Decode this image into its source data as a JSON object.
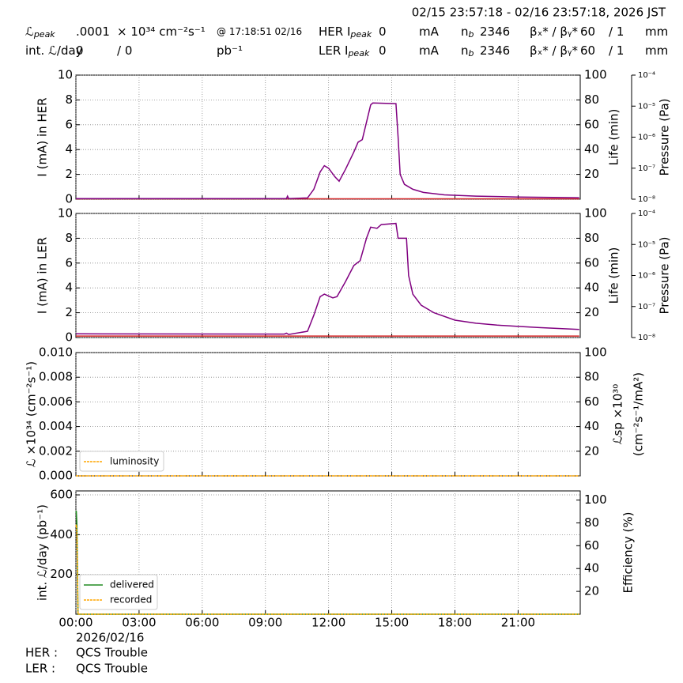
{
  "header": {
    "title": "02/15 23:57:18 - 02/16 23:57:18, 2026 JST",
    "rows": [
      [
        {
          "text": "ℒ",
          "sub": "peak"
        },
        {
          "text": ".0001"
        },
        {
          "text": "× 10³⁴ cm⁻²s⁻¹"
        },
        {
          "text": "@ 17:18:51 02/16"
        },
        {
          "text": "HER I",
          "sub": "peak"
        },
        {
          "text": "0"
        },
        {
          "text": "mA"
        },
        {
          "text": "n",
          "sub": "b"
        },
        {
          "text": "2346"
        },
        {
          "text": "βₓ* / βᵧ*"
        },
        {
          "text": "60"
        },
        {
          "text": "/ 1"
        },
        {
          "text": "mm"
        }
      ],
      [
        {
          "text": "int. ℒ/day"
        },
        {
          "text": "0"
        },
        {
          "text": "/ 0"
        },
        {
          "text": "pb⁻¹"
        },
        {
          "text": "LER I",
          "sub": "peak"
        },
        {
          "text": "0"
        },
        {
          "text": "mA"
        },
        {
          "text": "n",
          "sub": "b"
        },
        {
          "text": "2346"
        },
        {
          "text": "βₓ* / βᵧ*"
        },
        {
          "text": "60"
        },
        {
          "text": "/ 1"
        },
        {
          "text": "mm"
        }
      ]
    ]
  },
  "chart_data": [
    {
      "type": "line",
      "ylabel": "I (mA) in HER",
      "y2label": [
        "Life (min)"
      ],
      "y3label": "Pressure (Pa)",
      "grid": true,
      "xlim": [
        0,
        23.95
      ],
      "ylim": [
        0,
        10
      ],
      "yticks": [
        0,
        2,
        4,
        6,
        8,
        10
      ],
      "y2lim": [
        0,
        100
      ],
      "y2ticks": [
        20,
        40,
        60,
        80,
        100
      ],
      "y3lim": [
        1e-08,
        0.0001
      ],
      "y3log": true,
      "y3ticks": [
        {
          "value": 0.0001,
          "label": "10⁻⁴"
        },
        {
          "value": 1e-05,
          "label": "10⁻⁵"
        },
        {
          "value": 1e-06,
          "label": "10⁻⁶"
        },
        {
          "value": 1e-07,
          "label": "10⁻⁷"
        },
        {
          "value": 1e-08,
          "label": "10⁻⁸"
        }
      ],
      "x": [
        0,
        10,
        10.05,
        10.1,
        11.0,
        11.3,
        11.6,
        11.8,
        12.0,
        12.3,
        12.5,
        12.8,
        13.2,
        13.4,
        13.6,
        13.8,
        14.0,
        14.1,
        15.2,
        15.3,
        15.4,
        15.6,
        16.0,
        16.5,
        17.5,
        19,
        21,
        23.9
      ],
      "series": [
        {
          "color": "#d62728",
          "values": [
            0.03,
            0.03,
            0.03,
            0.03,
            0.03,
            0.03,
            0.03,
            0.03,
            0.03,
            0.03,
            0.03,
            0.03,
            0.03,
            0.03,
            0.03,
            0.03,
            0.03,
            0.03,
            0.03,
            0.03,
            0.03,
            0.03,
            0.03,
            0.03,
            0.03,
            0.03,
            0.03,
            0.03
          ]
        },
        {
          "color": "#800080",
          "values": [
            0.05,
            0.05,
            0.25,
            0.05,
            0.1,
            0.8,
            2.2,
            2.7,
            2.5,
            1.8,
            1.45,
            2.4,
            3.8,
            4.6,
            4.8,
            6.2,
            7.6,
            7.75,
            7.7,
            5.0,
            2.0,
            1.2,
            0.8,
            0.55,
            0.35,
            0.25,
            0.18,
            0.12
          ]
        }
      ]
    },
    {
      "type": "line",
      "ylabel": "I (mA) in LER",
      "y2label": [
        "Life (min)"
      ],
      "y3label": "Pressure (Pa)",
      "grid": true,
      "xlim": [
        0,
        23.95
      ],
      "ylim": [
        0,
        10
      ],
      "yticks": [
        0,
        2,
        4,
        6,
        8,
        10
      ],
      "y2lim": [
        0,
        100
      ],
      "y2ticks": [
        20,
        40,
        60,
        80,
        100
      ],
      "y3lim": [
        1e-08,
        0.0001
      ],
      "y3log": true,
      "y3ticks": [
        {
          "value": 0.0001,
          "label": "10⁻⁴"
        },
        {
          "value": 1e-05,
          "label": "10⁻⁵"
        },
        {
          "value": 1e-06,
          "label": "10⁻⁶"
        },
        {
          "value": 1e-07,
          "label": "10⁻⁷"
        },
        {
          "value": 1e-08,
          "label": "10⁻⁸"
        }
      ],
      "x": [
        0,
        9.9,
        10.0,
        10.1,
        11.0,
        11.3,
        11.6,
        11.8,
        12.2,
        12.4,
        12.8,
        13.2,
        13.5,
        13.8,
        14.0,
        14.3,
        14.5,
        15.2,
        15.3,
        15.7,
        15.8,
        16.0,
        16.4,
        17,
        18,
        19,
        20,
        21,
        22,
        23.9
      ],
      "series": [
        {
          "color": "#800080",
          "values": [
            0.3,
            0.28,
            0.35,
            0.25,
            0.5,
            1.8,
            3.3,
            3.5,
            3.2,
            3.3,
            4.5,
            5.8,
            6.2,
            8.0,
            8.9,
            8.8,
            9.1,
            9.2,
            8.0,
            8.0,
            5.0,
            3.5,
            2.6,
            2.0,
            1.4,
            1.15,
            1.0,
            0.9,
            0.8,
            0.65
          ]
        },
        {
          "color": "#d62728",
          "values": [
            0.12,
            0.12,
            0.12,
            0.12,
            0.12,
            0.12,
            0.12,
            0.12,
            0.12,
            0.12,
            0.12,
            0.12,
            0.12,
            0.12,
            0.12,
            0.12,
            0.12,
            0.12,
            0.12,
            0.12,
            0.12,
            0.12,
            0.12,
            0.12,
            0.12,
            0.12,
            0.12,
            0.12,
            0.12,
            0.12
          ]
        }
      ]
    },
    {
      "type": "line",
      "ylabel": "ℒ ×10³⁴ (cm⁻²s⁻¹)",
      "y2label": [
        "ℒsp ×10³⁰",
        "(cm⁻²s⁻¹/mA²)"
      ],
      "grid": true,
      "legend": "lower left",
      "xlim": [
        0,
        23.95
      ],
      "ylim": [
        0,
        0.01
      ],
      "yticks": [
        {
          "value": 0,
          "label": "0.000"
        },
        {
          "value": 0.002,
          "label": "0.002"
        },
        {
          "value": 0.004,
          "label": "0.004"
        },
        {
          "value": 0.006,
          "label": "0.006"
        },
        {
          "value": 0.008,
          "label": "0.008"
        },
        {
          "value": 0.01,
          "label": "0.010"
        }
      ],
      "y2lim": [
        0,
        100
      ],
      "y2ticks": [
        20,
        40,
        60,
        80,
        100
      ],
      "x": [
        0,
        23.9
      ],
      "series": [
        {
          "name": "luminosity",
          "color": "#ffa500",
          "dashed": true,
          "values": [
            0,
            0
          ]
        }
      ]
    },
    {
      "type": "line",
      "ylabel": "int. ℒ/day (pb⁻¹)",
      "y2label": [
        "Efficiency (%)"
      ],
      "grid": true,
      "legend": "lower left",
      "xlim": [
        0,
        23.95
      ],
      "ylim": [
        0,
        620
      ],
      "yticks": [
        200,
        400,
        600
      ],
      "y2lim": [
        0,
        108
      ],
      "y2ticks": [
        20,
        40,
        60,
        80,
        100
      ],
      "xticks": [
        {
          "value": 0,
          "label": "00:00"
        },
        {
          "value": 3,
          "label": "03:00"
        },
        {
          "value": 6,
          "label": "06:00"
        },
        {
          "value": 9,
          "label": "09:00"
        },
        {
          "value": 12,
          "label": "12:00"
        },
        {
          "value": 15,
          "label": "15:00"
        },
        {
          "value": 18,
          "label": "18:00"
        },
        {
          "value": 21,
          "label": "21:00"
        }
      ],
      "x": [
        0,
        0.02,
        0.05,
        0.1,
        23.9
      ],
      "series": [
        {
          "name": "delivered",
          "color": "#228b22",
          "values": [
            510,
            520,
            450,
            0,
            0
          ]
        },
        {
          "name": "recorded",
          "color": "#ffa500",
          "dashed": true,
          "values": [
            440,
            450,
            400,
            0,
            0
          ]
        }
      ]
    }
  ],
  "footer": {
    "date": "2026/02/16",
    "rows": [
      [
        "HER :",
        "QCS Trouble"
      ],
      [
        "LER :",
        "QCS Trouble"
      ]
    ]
  }
}
